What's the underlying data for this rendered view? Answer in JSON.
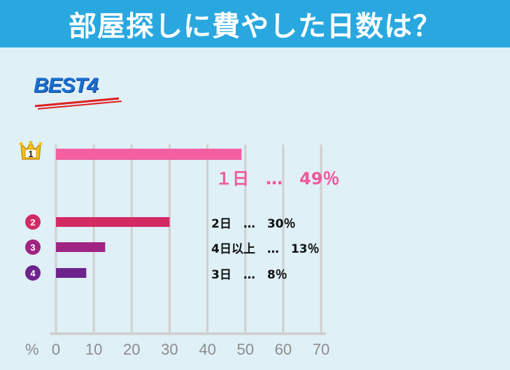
{
  "header": {
    "title": "部屋探しに費やした日数は？"
  },
  "badge": {
    "text": "BEST4"
  },
  "colors": {
    "header_bg": "#29a8e0",
    "background": "#dff0f7",
    "grid": "#d0d0d0"
  },
  "chart_data": {
    "type": "bar",
    "orientation": "horizontal",
    "unit_label": "%",
    "xlim": [
      0,
      70
    ],
    "ticks": [
      "0",
      "10",
      "20",
      "30",
      "40",
      "50",
      "60",
      "70"
    ],
    "grid": true,
    "bars": [
      {
        "rank": "1",
        "category": "1日",
        "value": 49,
        "label": "１日　…　49％",
        "color": "#f35fa0",
        "rank_icon": "crown-icon"
      },
      {
        "rank": "2",
        "category": "2日",
        "value": 30,
        "label": "2日　…　30％",
        "color": "#d32a64",
        "rank_icon": "circle-icon"
      },
      {
        "rank": "3",
        "category": "4日以上",
        "value": 13,
        "label": "4日以上　…　13％",
        "color": "#a02583",
        "rank_icon": "circle-icon"
      },
      {
        "rank": "4",
        "category": "3日",
        "value": 8,
        "label": "3日　…　8％",
        "color": "#6e238c",
        "rank_icon": "circle-icon"
      }
    ]
  }
}
